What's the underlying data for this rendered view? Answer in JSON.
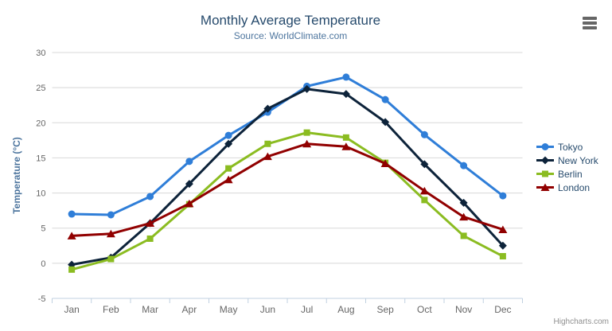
{
  "chart_data": {
    "type": "line",
    "title": "Monthly Average Temperature",
    "subtitle": "Source: WorldClimate.com",
    "xlabel": "",
    "ylabel": "Temperature (°C)",
    "ylim": [
      -5,
      30
    ],
    "ytick_interval": 5,
    "grid": true,
    "legend_position": "right",
    "categories": [
      "Jan",
      "Feb",
      "Mar",
      "Apr",
      "May",
      "Jun",
      "Jul",
      "Aug",
      "Sep",
      "Oct",
      "Nov",
      "Dec"
    ],
    "series": [
      {
        "name": "Tokyo",
        "marker": "circle",
        "color": "#2f7ed8",
        "values": [
          7.0,
          6.9,
          9.5,
          14.5,
          18.2,
          21.5,
          25.2,
          26.5,
          23.3,
          18.3,
          13.9,
          9.6
        ]
      },
      {
        "name": "New York",
        "marker": "diamond",
        "color": "#0d233a",
        "values": [
          -0.2,
          0.8,
          5.7,
          11.3,
          17.0,
          22.0,
          24.8,
          24.1,
          20.1,
          14.1,
          8.6,
          2.5
        ]
      },
      {
        "name": "Berlin",
        "marker": "square",
        "color": "#8bbc21",
        "values": [
          -0.9,
          0.6,
          3.5,
          8.4,
          13.5,
          17.0,
          18.6,
          17.9,
          14.3,
          9.0,
          3.9,
          1.0
        ]
      },
      {
        "name": "London",
        "marker": "triangle",
        "color": "#910000",
        "values": [
          3.9,
          4.2,
          5.7,
          8.5,
          11.9,
          15.2,
          17.0,
          16.6,
          14.2,
          10.3,
          6.6,
          4.8
        ]
      }
    ]
  },
  "colors": {
    "title": "#274b6d",
    "subtitle": "#4d759e",
    "axis_title": "#4d759e",
    "axis_labels": "#666666",
    "grid_line": "#d8d8d8",
    "axis_line": "#c0d0e0",
    "legend_text": "#274b6d",
    "credit": "#909090",
    "menu_icon": "#666666"
  },
  "ui": {
    "menu_icon": "hamburger"
  },
  "credit": {
    "label": "Highcharts.com"
  }
}
